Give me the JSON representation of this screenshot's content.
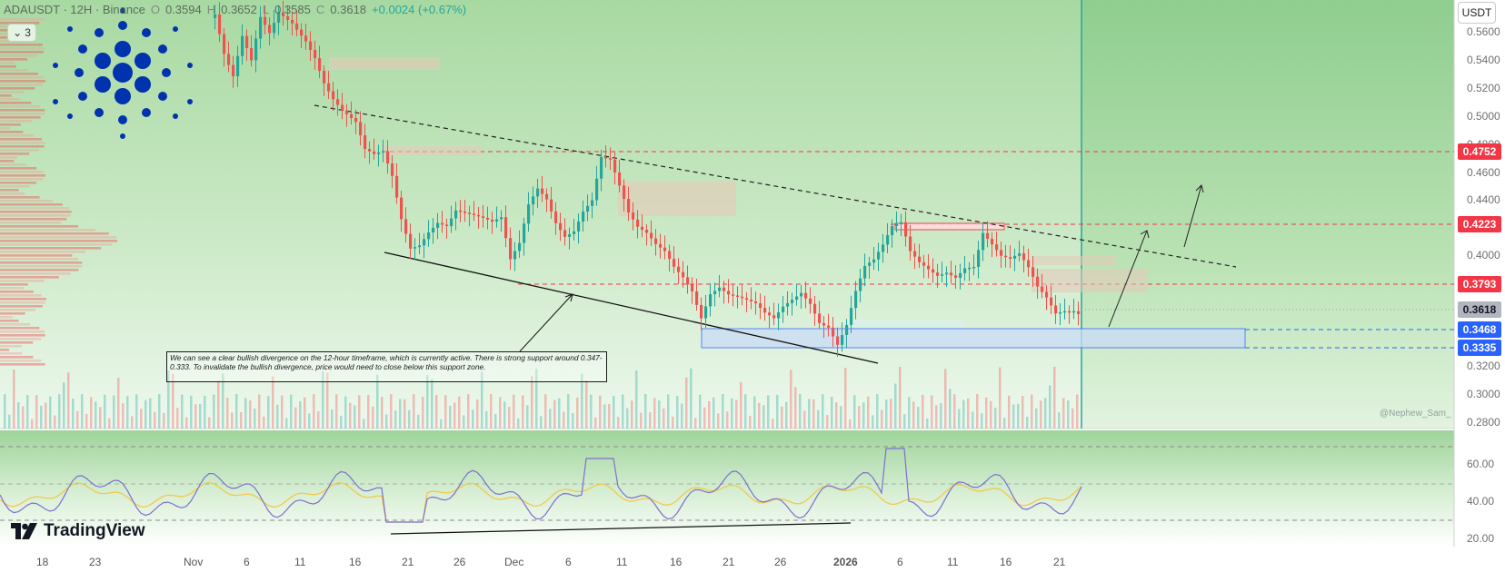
{
  "header": {
    "symbol_line": "ADAUSDT · 12H · Binance",
    "open_label": "O",
    "open": "0.3594",
    "high_label": "H",
    "high": "0.3652",
    "low_label": "L",
    "low": "0.3585",
    "close_label": "C",
    "close": "0.3618",
    "change": "+0.0024 (+0.67%)",
    "indicator_count": "3"
  },
  "currency_button": "USDT",
  "price_axis": [
    "0.5600",
    "0.5400",
    "0.5200",
    "0.5000",
    "0.4800",
    "0.4600",
    "0.4400",
    "0.4000",
    "0.3200",
    "0.3000",
    "0.2800"
  ],
  "price_tags": {
    "resistance_1": "0.4752",
    "resistance_2": "0.4223",
    "resistance_3": "0.3793",
    "last_price": "0.3618",
    "support_top": "0.3468",
    "support_bottom": "0.3335"
  },
  "rsi_axis": [
    "60.00",
    "40.00",
    "20.00"
  ],
  "time_axis": [
    "18",
    "23",
    "Nov",
    "6",
    "11",
    "16",
    "21",
    "26",
    "Dec",
    "6",
    "11",
    "16",
    "21",
    "26",
    "2026",
    "6",
    "11",
    "16",
    "21"
  ],
  "annotation": "We can see a clear bullish divergence on the 12-hour timeframe, which is currently active. There is strong support around 0.347-0.333. To invalidate the bullish divergence, price would need to close below this support zone.",
  "watermark": "@Nephew_Sam_",
  "brand": "TradingView",
  "colors": {
    "up": "#26a69a",
    "down": "#ef5350",
    "resistance_line": "#f23645",
    "support_zone": "#2962ff",
    "rsi_line": "#7e57c2",
    "rsi_ma": "#f7c948",
    "background_green": "#a8dca8"
  }
}
